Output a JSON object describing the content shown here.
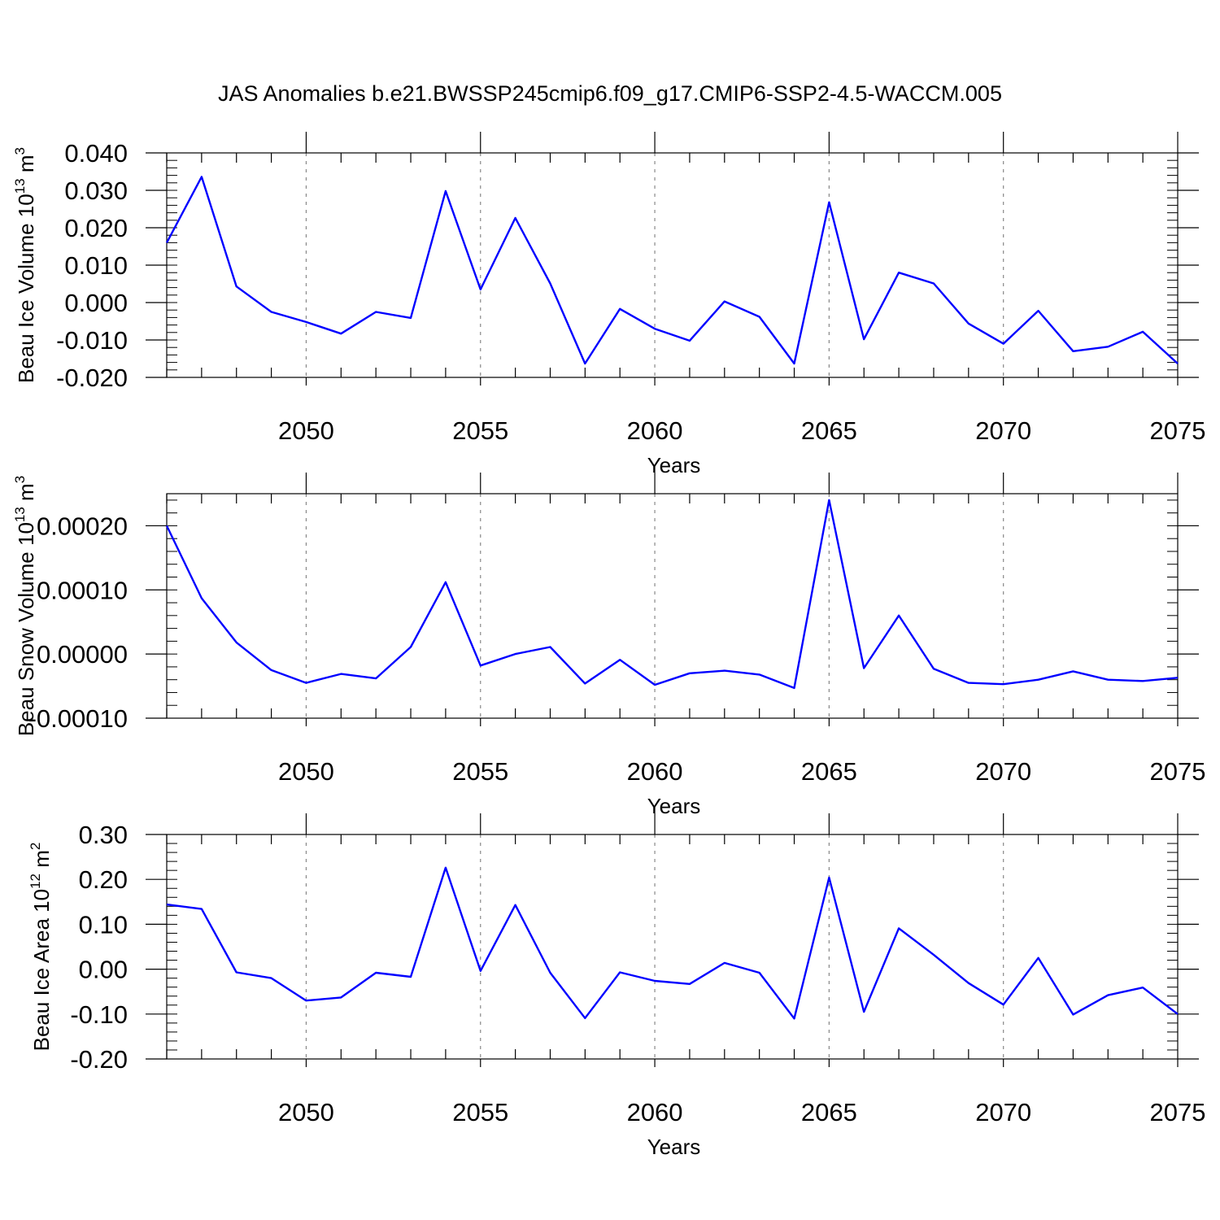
{
  "title": "JAS Anomalies b.e21.BWSSP245cmip6.f09_g17.CMIP6-SSP2-4.5-WACCM.005",
  "colors": {
    "line": "#0000ff",
    "axis": "#000000",
    "grid": "#888888"
  },
  "chart_data": [
    {
      "type": "line",
      "ylabel": {
        "prefix": "Beau Ice Volume 10",
        "exp": "13",
        "unit": " m",
        "unit_exp": "3"
      },
      "xlabel": "Years",
      "xlim": [
        2046,
        2075
      ],
      "ylim": [
        -0.02,
        0.04
      ],
      "y_ticks": [
        {
          "v": 0.04,
          "label": "0.040"
        },
        {
          "v": 0.03,
          "label": "0.030"
        },
        {
          "v": 0.02,
          "label": "0.020"
        },
        {
          "v": 0.01,
          "label": "0.010"
        },
        {
          "v": 0.0,
          "label": "0.000"
        },
        {
          "v": -0.01,
          "label": "-0.010"
        },
        {
          "v": -0.02,
          "label": "-0.020"
        }
      ],
      "x_ticks": [
        {
          "v": 2050,
          "label": "2050"
        },
        {
          "v": 2055,
          "label": "2055"
        },
        {
          "v": 2060,
          "label": "2060"
        },
        {
          "v": 2065,
          "label": "2065"
        },
        {
          "v": 2070,
          "label": "2070"
        },
        {
          "v": 2075,
          "label": "2075"
        }
      ],
      "years": [
        2046,
        2047,
        2048,
        2049,
        2050,
        2051,
        2052,
        2053,
        2054,
        2055,
        2056,
        2057,
        2058,
        2059,
        2060,
        2061,
        2062,
        2063,
        2064,
        2065,
        2066,
        2067,
        2068,
        2069,
        2070,
        2071,
        2072,
        2073,
        2074,
        2075
      ],
      "values": [
        0.016,
        0.0336,
        0.0043,
        -0.0025,
        -0.0052,
        -0.0083,
        -0.0025,
        -0.0041,
        0.0298,
        0.0035,
        0.0226,
        0.0051,
        -0.0163,
        -0.0017,
        -0.007,
        -0.0102,
        0.0003,
        -0.0038,
        -0.0163,
        0.0268,
        -0.0098,
        0.008,
        0.0051,
        -0.0056,
        -0.011,
        -0.0022,
        -0.013,
        -0.0118,
        -0.0078,
        -0.0163
      ]
    },
    {
      "type": "line",
      "ylabel": {
        "prefix": "Beau Snow Volume 10",
        "exp": "13",
        "unit": " m",
        "unit_exp": "3"
      },
      "xlabel": "Years",
      "xlim": [
        2046,
        2075
      ],
      "ylim": [
        -0.0001,
        0.00025
      ],
      "y_ticks": [
        {
          "v": 0.0002,
          "label": "0.00020"
        },
        {
          "v": 0.0001,
          "label": "0.00010"
        },
        {
          "v": 0.0,
          "label": "0.00000"
        },
        {
          "v": -0.0001,
          "label": "-0.00010"
        }
      ],
      "x_ticks": [
        {
          "v": 2050,
          "label": "2050"
        },
        {
          "v": 2055,
          "label": "2055"
        },
        {
          "v": 2060,
          "label": "2060"
        },
        {
          "v": 2065,
          "label": "2065"
        },
        {
          "v": 2070,
          "label": "2070"
        },
        {
          "v": 2075,
          "label": "2075"
        }
      ],
      "years": [
        2046,
        2047,
        2048,
        2049,
        2050,
        2051,
        2052,
        2053,
        2054,
        2055,
        2056,
        2057,
        2058,
        2059,
        2060,
        2061,
        2062,
        2063,
        2064,
        2065,
        2066,
        2067,
        2068,
        2069,
        2070,
        2071,
        2072,
        2073,
        2074,
        2075
      ],
      "values": [
        0.0002,
        8.7e-05,
        1.8e-05,
        -2.5e-05,
        -4.5e-05,
        -3.1e-05,
        -3.8e-05,
        1.1e-05,
        0.000112,
        -1.8e-05,
        0.0,
        1.1e-05,
        -4.6e-05,
        -9e-06,
        -4.8e-05,
        -3e-05,
        -2.6e-05,
        -3.2e-05,
        -5.3e-05,
        0.00024,
        -2.2e-05,
        6e-05,
        -2.3e-05,
        -4.5e-05,
        -4.7e-05,
        -4e-05,
        -2.7e-05,
        -4e-05,
        -4.2e-05,
        -3.7e-05
      ]
    },
    {
      "type": "line",
      "ylabel": {
        "prefix": "Beau Ice Area 10",
        "exp": "12",
        "unit": " m",
        "unit_exp": "2"
      },
      "xlabel": "Years",
      "xlim": [
        2046,
        2075
      ],
      "ylim": [
        -0.2,
        0.3
      ],
      "y_ticks": [
        {
          "v": 0.3,
          "label": "0.30"
        },
        {
          "v": 0.2,
          "label": "0.20"
        },
        {
          "v": 0.1,
          "label": "0.10"
        },
        {
          "v": 0.0,
          "label": "0.00"
        },
        {
          "v": -0.1,
          "label": "-0.10"
        },
        {
          "v": -0.2,
          "label": "-0.20"
        }
      ],
      "x_ticks": [
        {
          "v": 2050,
          "label": "2050"
        },
        {
          "v": 2055,
          "label": "2055"
        },
        {
          "v": 2060,
          "label": "2060"
        },
        {
          "v": 2065,
          "label": "2065"
        },
        {
          "v": 2070,
          "label": "2070"
        },
        {
          "v": 2075,
          "label": "2075"
        }
      ],
      "years": [
        2046,
        2047,
        2048,
        2049,
        2050,
        2051,
        2052,
        2053,
        2054,
        2055,
        2056,
        2057,
        2058,
        2059,
        2060,
        2061,
        2062,
        2063,
        2064,
        2065,
        2066,
        2067,
        2068,
        2069,
        2070,
        2071,
        2072,
        2073,
        2074,
        2075
      ],
      "values": [
        0.144,
        0.134,
        -0.007,
        -0.02,
        -0.07,
        -0.063,
        -0.008,
        -0.017,
        0.226,
        -0.004,
        0.143,
        -0.008,
        -0.109,
        -0.007,
        -0.026,
        -0.033,
        0.014,
        -0.008,
        -0.11,
        0.204,
        -0.095,
        0.091,
        0.032,
        -0.031,
        -0.079,
        0.025,
        -0.101,
        -0.058,
        -0.041,
        -0.1
      ]
    }
  ]
}
